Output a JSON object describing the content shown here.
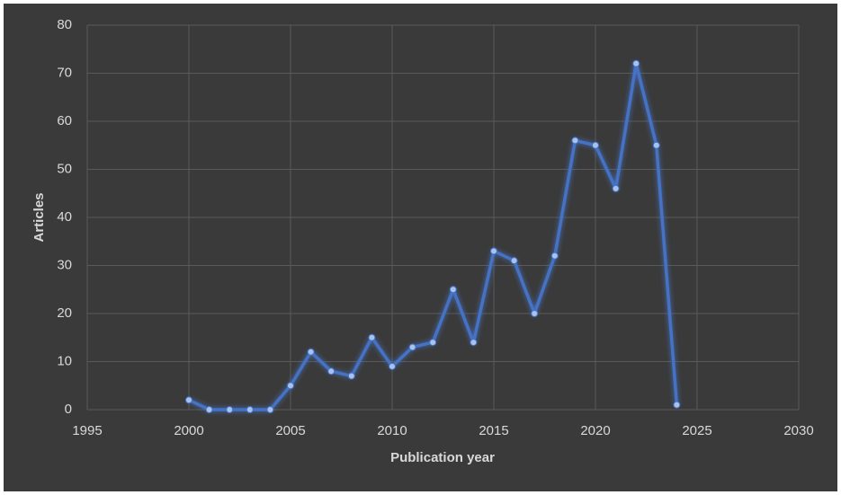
{
  "chart_data": {
    "type": "line",
    "x": [
      2000,
      2001,
      2002,
      2003,
      2004,
      2005,
      2006,
      2007,
      2008,
      2009,
      2010,
      2011,
      2012,
      2013,
      2014,
      2015,
      2016,
      2017,
      2018,
      2019,
      2020,
      2021,
      2022,
      2023,
      2024
    ],
    "values": [
      2,
      0,
      0,
      0,
      0,
      5,
      12,
      8,
      7,
      15,
      9,
      13,
      14,
      25,
      14,
      33,
      31,
      20,
      32,
      56,
      55,
      46,
      72,
      55,
      1
    ],
    "color": "#4472c4",
    "xlabel": "Publication year",
    "ylabel": "Articles",
    "xlim": [
      1995,
      2030
    ],
    "xticks": [
      1995,
      2000,
      2005,
      2010,
      2015,
      2020,
      2025,
      2030
    ],
    "ylim": [
      0,
      80
    ],
    "yticks": [
      0,
      10,
      20,
      30,
      40,
      50,
      60,
      70,
      80
    ],
    "grid": true
  }
}
